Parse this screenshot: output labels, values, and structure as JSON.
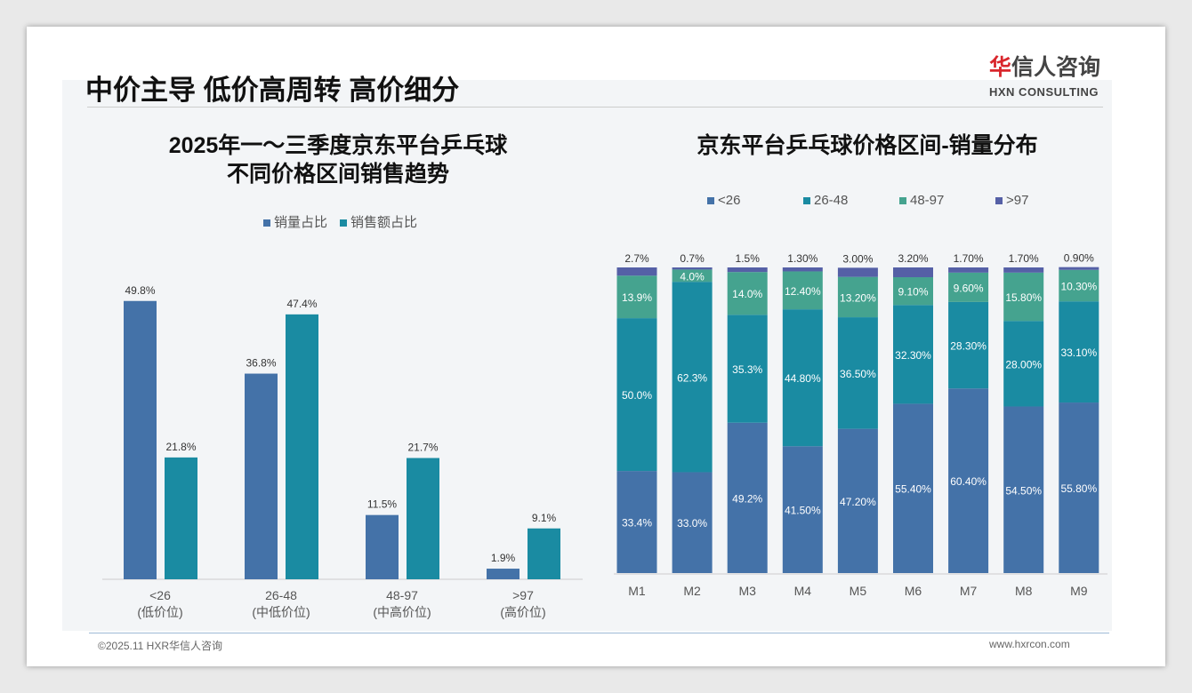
{
  "header": {
    "title": "中价主导 低价高周转 高价细分",
    "logo_cn": "华信人咨询",
    "logo_en": "HXN CONSULTING"
  },
  "footer": {
    "left": "©2025.11 HXR华信人咨询",
    "right": "www.hxrcon.com"
  },
  "colors": {
    "blue": "#4472a8",
    "teal": "#1a8ba2",
    "green": "#45a38f",
    "purple": "#5560a6"
  },
  "chart_data": [
    {
      "type": "bar",
      "title_line1": "2025年一～三季度京东平台乒乓球",
      "title_line2": "不同价格区间销售趋势",
      "categories": [
        "<26",
        "26-48",
        "48-97",
        ">97"
      ],
      "category_sub": [
        "(低价位)",
        "(中低价位)",
        "(中高价位)",
        "(高价位)"
      ],
      "series": [
        {
          "name": "销量占比",
          "values": [
            49.8,
            36.8,
            11.5,
            1.9
          ]
        },
        {
          "name": "销售额占比",
          "values": [
            21.8,
            47.4,
            21.7,
            9.1
          ]
        }
      ],
      "ylim": [
        0,
        50
      ],
      "unit": "%",
      "legend": "top"
    },
    {
      "type": "bar",
      "stacked": true,
      "title": "京东平台乒乓球价格区间-销量分布",
      "categories": [
        "M1",
        "M2",
        "M3",
        "M4",
        "M5",
        "M6",
        "M7",
        "M8",
        "M9"
      ],
      "series": [
        {
          "name": "<26",
          "labels": [
            "33.4%",
            "33.0%",
            "49.2%",
            "41.50%",
            "47.20%",
            "55.40%",
            "60.40%",
            "54.50%",
            "55.80%"
          ],
          "values": [
            33.4,
            33.0,
            49.2,
            41.5,
            47.2,
            55.4,
            60.4,
            54.5,
            55.8
          ]
        },
        {
          "name": "26-48",
          "labels": [
            "50.0%",
            "62.3%",
            "35.3%",
            "44.80%",
            "36.50%",
            "32.30%",
            "28.30%",
            "28.00%",
            "33.10%"
          ],
          "values": [
            50.0,
            62.3,
            35.3,
            44.8,
            36.5,
            32.3,
            28.3,
            28.0,
            33.1
          ]
        },
        {
          "name": "48-97",
          "labels": [
            "13.9%",
            "4.0%",
            "14.0%",
            "12.40%",
            "13.20%",
            "9.10%",
            "9.60%",
            "15.80%",
            "10.30%"
          ],
          "values": [
            13.9,
            4.0,
            14.0,
            12.4,
            13.2,
            9.1,
            9.6,
            15.8,
            10.3
          ]
        },
        {
          "name": ">97",
          "labels": [
            "2.7%",
            "0.7%",
            "1.5%",
            "1.30%",
            "3.00%",
            "3.20%",
            "1.70%",
            "1.70%",
            "0.90%"
          ],
          "values": [
            2.7,
            0.7,
            1.5,
            1.3,
            3.0,
            3.2,
            1.7,
            1.7,
            0.9
          ]
        }
      ],
      "ylim": [
        0,
        100
      ],
      "legend": "top"
    }
  ]
}
